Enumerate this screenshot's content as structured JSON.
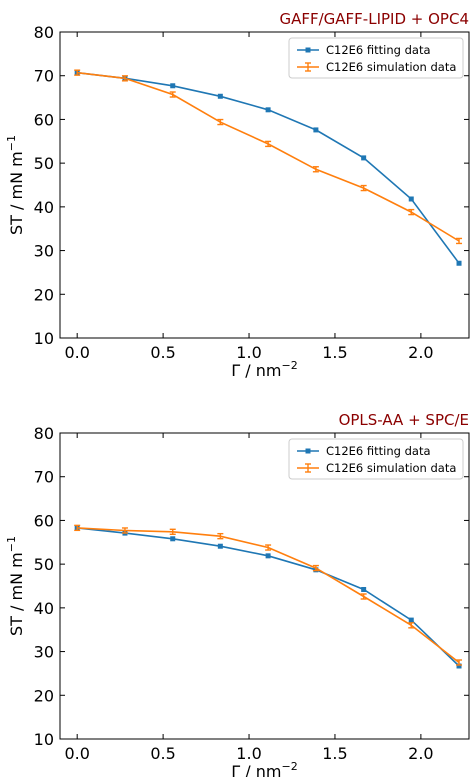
{
  "chart_data": [
    {
      "type": "line",
      "title": "GAFF/GAFF-LIPID + OPC4",
      "title_color": "#8b0000",
      "xlabel": "Γ / nm",
      "xlabel_exp": "−2",
      "ylabel": "ST / mN m",
      "ylabel_exp": "−1",
      "xlim": [
        -0.1,
        2.28
      ],
      "ylim": [
        10,
        80
      ],
      "xticks": [
        0.0,
        0.5,
        1.0,
        1.5,
        2.0
      ],
      "xtick_labels": [
        "0.0",
        "0.5",
        "1.0",
        "1.5",
        "2.0"
      ],
      "yticks": [
        10,
        20,
        30,
        40,
        50,
        60,
        70,
        80
      ],
      "ytick_labels": [
        "10",
        "20",
        "30",
        "40",
        "50",
        "60",
        "70",
        "80"
      ],
      "grid": false,
      "legend_position": "top-right",
      "x": [
        0.0,
        0.278,
        0.556,
        0.833,
        1.111,
        1.389,
        1.667,
        1.944,
        2.222
      ],
      "series": [
        {
          "name": "C12E6 fitting data",
          "color": "#1f77b4",
          "marker": "square",
          "values": [
            70.7,
            69.4,
            67.7,
            65.3,
            62.2,
            57.6,
            51.2,
            41.8,
            27.1
          ]
        },
        {
          "name": "C12E6 simulation data",
          "color": "#ff7f0e",
          "marker": "errorbar",
          "values": [
            70.7,
            69.4,
            65.7,
            59.4,
            54.4,
            48.6,
            44.3,
            38.8,
            32.2
          ]
        }
      ]
    },
    {
      "type": "line",
      "title": "OPLS-AA + SPC/E",
      "title_color": "#8b0000",
      "xlabel": "Γ / nm",
      "xlabel_exp": "−2",
      "ylabel": "ST / mN m",
      "ylabel_exp": "−1",
      "xlim": [
        -0.1,
        2.28
      ],
      "ylim": [
        10,
        80
      ],
      "xticks": [
        0.0,
        0.5,
        1.0,
        1.5,
        2.0
      ],
      "xtick_labels": [
        "0.0",
        "0.5",
        "1.0",
        "1.5",
        "2.0"
      ],
      "yticks": [
        10,
        20,
        30,
        40,
        50,
        60,
        70,
        80
      ],
      "ytick_labels": [
        "10",
        "20",
        "30",
        "40",
        "50",
        "60",
        "70",
        "80"
      ],
      "grid": false,
      "legend_position": "top-right",
      "x": [
        0.0,
        0.278,
        0.556,
        0.833,
        1.111,
        1.389,
        1.667,
        1.944,
        2.222
      ],
      "series": [
        {
          "name": "C12E6 fitting data",
          "color": "#1f77b4",
          "marker": "square",
          "values": [
            58.3,
            57.1,
            55.8,
            54.1,
            51.9,
            48.7,
            44.2,
            37.2,
            26.7
          ]
        },
        {
          "name": "C12E6 simulation data",
          "color": "#ff7f0e",
          "marker": "errorbar",
          "values": [
            58.3,
            57.7,
            57.4,
            56.4,
            53.8,
            49.1,
            42.6,
            36.0,
            27.5
          ]
        }
      ]
    }
  ]
}
